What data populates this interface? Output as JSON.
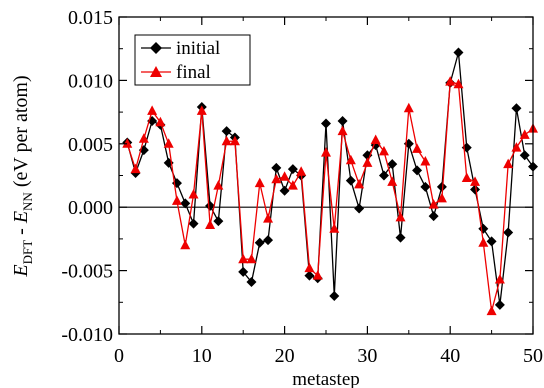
{
  "chart_data": {
    "type": "line",
    "title": "",
    "xlabel": "metastep",
    "ylabel": {
      "e1": "E",
      "s1": "DFT",
      "mid": " - ",
      "e2": "E",
      "s2": "NN",
      "unit": " (eV per atom)"
    },
    "xlim": [
      0,
      50
    ],
    "ylim": [
      -0.01,
      0.015
    ],
    "xticks": [
      0,
      10,
      20,
      30,
      40,
      50
    ],
    "yticks": [
      -0.01,
      -0.005,
      0.0,
      0.005,
      0.01,
      0.015
    ],
    "xtick_labels": [
      "0",
      "10",
      "20",
      "30",
      "40",
      "50"
    ],
    "ytick_labels": [
      "-0.010",
      "-0.005",
      "0.000",
      "0.005",
      "0.010",
      "0.015"
    ],
    "legend_position": "top-left",
    "zero_line": true,
    "x": [
      1,
      2,
      3,
      4,
      5,
      6,
      7,
      8,
      9,
      10,
      11,
      12,
      13,
      14,
      15,
      16,
      17,
      18,
      19,
      20,
      21,
      22,
      23,
      24,
      25,
      26,
      27,
      28,
      29,
      30,
      31,
      32,
      33,
      34,
      35,
      36,
      37,
      38,
      39,
      40,
      41,
      42,
      43,
      44,
      45,
      46,
      47,
      48,
      49,
      50
    ],
    "series": [
      {
        "name": "initial",
        "color": "#000000",
        "marker": "diamond",
        "values": [
          0.0051,
          0.0027,
          0.0045,
          0.0068,
          0.0065,
          0.0035,
          0.0019,
          0.0003,
          -0.0013,
          0.0079,
          0.0001,
          -0.0011,
          0.006,
          0.0055,
          -0.0051,
          -0.0059,
          -0.0028,
          -0.0026,
          0.0031,
          0.0013,
          0.003,
          0.0025,
          -0.0054,
          -0.0056,
          0.0066,
          -0.007,
          0.0068,
          0.0021,
          -0.0001,
          0.0041,
          0.0049,
          0.0025,
          0.0034,
          -0.0024,
          0.005,
          0.0029,
          0.0016,
          -0.0007,
          0.0016,
          0.0098,
          0.0122,
          0.0047,
          0.0014,
          -0.0017,
          -0.0027,
          -0.0077,
          -0.002,
          0.0078,
          0.0041,
          0.0032
        ]
      },
      {
        "name": "final",
        "color": "#ee0000",
        "marker": "triangle",
        "values": [
          0.005,
          0.003,
          0.0054,
          0.0076,
          0.0067,
          0.005,
          0.0005,
          -0.003,
          0.001,
          0.0076,
          -0.0014,
          0.0017,
          0.0052,
          0.0052,
          -0.0041,
          -0.0041,
          0.0019,
          -0.0009,
          0.0022,
          0.0024,
          0.0017,
          0.0028,
          -0.0048,
          -0.0054,
          0.0043,
          -0.0017,
          0.006,
          0.0037,
          0.0018,
          0.0035,
          0.0053,
          0.0044,
          0.002,
          -0.0008,
          0.0078,
          0.0046,
          0.0036,
          0.0002,
          0.0007,
          0.0099,
          0.0097,
          0.0023,
          0.002,
          -0.0028,
          -0.0082,
          -0.0057,
          0.0034,
          0.0047,
          0.0057,
          0.0062
        ]
      }
    ]
  }
}
